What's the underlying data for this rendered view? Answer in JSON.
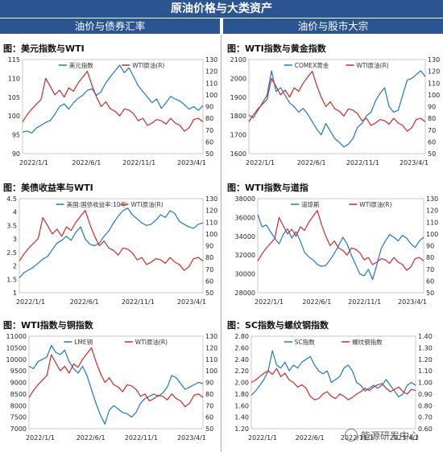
{
  "header": {
    "title": "原油价格与大类资产",
    "left_section": "油价与债券汇率",
    "right_section": "油价与股市大宗"
  },
  "watermark": "能源研发中心",
  "chart_data": [
    {
      "id": "p1",
      "type": "line",
      "title": "图：美元指数与WTI",
      "x_ticks": [
        "2022/1/1",
        "2022/6/1",
        "2022/11/1",
        "2023/4/1"
      ],
      "ylim": [
        90,
        115
      ],
      "yticks": [
        90,
        95,
        100,
        105,
        110,
        115
      ],
      "y2lim": [
        50,
        130
      ],
      "y2ticks": [
        50,
        60,
        70,
        80,
        90,
        100,
        110,
        120,
        130
      ],
      "series": [
        {
          "name": "美元指数",
          "axis": "left",
          "color": "#1f77c4",
          "values": [
            95.7,
            96.0,
            95.5,
            96.8,
            97.5,
            98.3,
            98.8,
            100.5,
            102.5,
            103.2,
            101.8,
            103.5,
            104.7,
            105.5,
            106.8,
            107.2,
            105.5,
            106.5,
            108.8,
            110.5,
            112.0,
            113.5,
            111.5,
            112.8,
            110.5,
            108.0,
            106.5,
            105.0,
            103.5,
            104.5,
            102.0,
            103.5,
            105.2,
            104.5,
            104.0,
            103.0,
            101.8,
            102.5,
            101.5,
            102.8
          ]
        },
        {
          "name": "WTI原油(R)",
          "axis": "right",
          "color": "#cc2a2a",
          "values": [
            77,
            83,
            88,
            92,
            96,
            114,
            107,
            100,
            104,
            98,
            106,
            103,
            110,
            115,
            120,
            108,
            98,
            90,
            94,
            88,
            86,
            82,
            88,
            87,
            84,
            78,
            80,
            74,
            76,
            79,
            78,
            75,
            80,
            76,
            74,
            69,
            72,
            79,
            80,
            77
          ]
        }
      ]
    },
    {
      "id": "p2",
      "type": "line",
      "title": "图：WTI指数与黄金指数",
      "x_ticks": [
        "2022/1/1",
        "2022/6/1",
        "2022/11/1",
        "2023/4/1"
      ],
      "ylim": [
        1600,
        2100
      ],
      "yticks": [
        1600,
        1700,
        1800,
        1900,
        2000,
        2100
      ],
      "y2lim": [
        50,
        130
      ],
      "y2ticks": [
        50,
        60,
        70,
        80,
        90,
        100,
        110,
        120,
        130
      ],
      "series": [
        {
          "name": "COMEX黄金",
          "axis": "left",
          "color": "#1f77c4",
          "values": [
            1805,
            1790,
            1830,
            1870,
            1910,
            2040,
            1930,
            1950,
            1910,
            1870,
            1850,
            1820,
            1840,
            1810,
            1770,
            1730,
            1700,
            1760,
            1720,
            1680,
            1660,
            1635,
            1650,
            1680,
            1740,
            1760,
            1800,
            1820,
            1880,
            1920,
            1950,
            1850,
            1820,
            1830,
            1910,
            1990,
            2000,
            2020,
            2040,
            2010
          ]
        },
        {
          "name": "WTI原油(R)",
          "axis": "right",
          "color": "#cc2a2a",
          "values": [
            77,
            83,
            88,
            92,
            96,
            114,
            107,
            100,
            104,
            98,
            106,
            103,
            110,
            115,
            120,
            108,
            98,
            90,
            94,
            88,
            86,
            82,
            88,
            87,
            84,
            78,
            80,
            74,
            76,
            79,
            78,
            75,
            80,
            76,
            74,
            69,
            72,
            79,
            80,
            77
          ]
        }
      ]
    },
    {
      "id": "p3",
      "type": "line",
      "title": "图：美债收益率与WTI",
      "x_ticks": [
        "2022/1/1",
        "2022/6/1",
        "2022/11/1",
        "2023/4/1"
      ],
      "ylim": [
        1,
        4.5
      ],
      "yticks": [
        1,
        1.5,
        2,
        2.5,
        3,
        3.5,
        4,
        4.5
      ],
      "y2lim": [
        50,
        130
      ],
      "y2ticks": [
        50,
        60,
        70,
        80,
        90,
        100,
        110,
        120,
        130
      ],
      "series": [
        {
          "name": "美国:国债收益率:10年",
          "axis": "left",
          "color": "#1f77c4",
          "values": [
            1.55,
            1.75,
            1.85,
            1.95,
            2.1,
            2.25,
            2.35,
            2.6,
            2.85,
            2.95,
            3.1,
            2.95,
            3.25,
            3.45,
            3.0,
            2.8,
            2.75,
            2.85,
            3.1,
            3.3,
            3.6,
            3.85,
            4.05,
            4.15,
            3.9,
            3.75,
            3.6,
            3.5,
            3.55,
            3.7,
            3.9,
            3.8,
            4.05,
            3.95,
            3.65,
            3.55,
            3.45,
            3.4,
            3.55,
            3.6
          ]
        },
        {
          "name": "WTI原油(R)",
          "axis": "right",
          "color": "#cc2a2a",
          "values": [
            77,
            83,
            88,
            92,
            96,
            114,
            107,
            100,
            104,
            98,
            106,
            103,
            110,
            115,
            120,
            108,
            98,
            90,
            94,
            88,
            86,
            82,
            88,
            87,
            84,
            78,
            80,
            74,
            76,
            79,
            78,
            75,
            80,
            76,
            74,
            69,
            72,
            79,
            80,
            77
          ]
        }
      ]
    },
    {
      "id": "p4",
      "type": "line",
      "title": "图：WTI指数与道指",
      "x_ticks": [
        "2022/1/1",
        "2022/6/1",
        "2022/11/1",
        "2023/4/1"
      ],
      "ylim": [
        28000,
        38000
      ],
      "yticks": [
        28000,
        30000,
        32000,
        34000,
        36000,
        38000
      ],
      "y2lim": [
        50,
        130
      ],
      "y2ticks": [
        50,
        60,
        70,
        80,
        90,
        100,
        110,
        120,
        130
      ],
      "series": [
        {
          "name": "道琼斯",
          "axis": "left",
          "color": "#1f77c4",
          "values": [
            36300,
            35000,
            35200,
            34500,
            33800,
            33200,
            34200,
            34800,
            33800,
            34500,
            33500,
            32300,
            31800,
            31500,
            31000,
            30800,
            30900,
            31500,
            32200,
            33000,
            33900,
            33200,
            32000,
            31000,
            30000,
            29800,
            30500,
            29400,
            31000,
            32700,
            33500,
            34200,
            33900,
            33500,
            34100,
            33800,
            33200,
            32800,
            33500,
            33900
          ]
        },
        {
          "name": "WTI原油(R)",
          "axis": "right",
          "color": "#cc2a2a",
          "values": [
            77,
            83,
            88,
            92,
            96,
            114,
            107,
            100,
            104,
            98,
            106,
            103,
            110,
            115,
            120,
            108,
            98,
            90,
            94,
            88,
            86,
            82,
            88,
            87,
            84,
            78,
            80,
            74,
            76,
            79,
            78,
            75,
            80,
            76,
            74,
            69,
            72,
            79,
            80,
            77
          ]
        }
      ]
    },
    {
      "id": "p5",
      "type": "line",
      "title": "图：WTI指数与铜指数",
      "x_ticks": [
        "2022/1/1",
        "2022/6/1",
        "2022/11/1",
        "2023/4/1"
      ],
      "ylim": [
        7000,
        11000
      ],
      "yticks": [
        7000,
        7500,
        8000,
        8500,
        9000,
        9500,
        10000,
        10500,
        11000
      ],
      "y2lim": [
        50,
        130
      ],
      "y2ticks": [
        50,
        60,
        70,
        80,
        90,
        100,
        110,
        120,
        130
      ],
      "series": [
        {
          "name": "LME铜",
          "axis": "left",
          "color": "#1f77c4",
          "values": [
            9700,
            9600,
            9900,
            10000,
            10100,
            10600,
            10300,
            10200,
            10400,
            9900,
            9600,
            9400,
            9700,
            9300,
            8700,
            8100,
            7600,
            7200,
            7800,
            8000,
            7850,
            7700,
            7650,
            7500,
            7700,
            8100,
            8300,
            8400,
            8500,
            8400,
            8550,
            8800,
            9300,
            9200,
            8950,
            8700,
            8800,
            8900,
            9000,
            8950
          ]
        },
        {
          "name": "WTI原油(R)",
          "axis": "right",
          "color": "#cc2a2a",
          "values": [
            77,
            83,
            88,
            92,
            96,
            114,
            107,
            100,
            104,
            98,
            106,
            103,
            110,
            115,
            120,
            108,
            98,
            90,
            94,
            88,
            86,
            82,
            88,
            87,
            84,
            78,
            80,
            74,
            76,
            79,
            78,
            75,
            80,
            76,
            74,
            69,
            72,
            79,
            80,
            77
          ]
        }
      ]
    },
    {
      "id": "p6",
      "type": "line",
      "title": "图：SC指数与螺纹钢指数",
      "x_ticks": [
        "2022/1/1",
        "2022/6/1",
        "2022/11/1",
        "2023/4/1"
      ],
      "ylim": [
        1.2,
        2.8
      ],
      "yticks": [
        1.2,
        1.4,
        1.6,
        1.8,
        2.0,
        2.2,
        2.4,
        2.6,
        2.8
      ],
      "yticks_labels": [
        "1.20",
        "1.40",
        "1.60",
        "1.80",
        "2.00",
        "2.20",
        "2.40",
        "2.60",
        "2.80"
      ],
      "y2lim": [
        0.6,
        1.4
      ],
      "y2ticks": [
        0.6,
        0.7,
        0.8,
        0.9,
        1.0,
        1.1,
        1.2,
        1.3,
        1.4
      ],
      "y2ticks_labels": [
        "0.60",
        "0.70",
        "0.80",
        "0.90",
        "1.00",
        "1.10",
        "1.20",
        "1.30",
        "1.40"
      ],
      "series": [
        {
          "name": "SC指数",
          "axis": "left",
          "color": "#1f77c4",
          "values": [
            1.78,
            1.85,
            1.95,
            2.05,
            2.2,
            2.55,
            2.3,
            2.25,
            2.35,
            2.2,
            2.3,
            2.25,
            2.35,
            2.4,
            2.45,
            2.3,
            2.2,
            2.15,
            2.2,
            2.0,
            2.05,
            2.1,
            2.25,
            2.3,
            2.2,
            2.0,
            1.95,
            1.85,
            1.9,
            1.95,
            1.9,
            1.95,
            2.05,
            1.95,
            1.85,
            1.75,
            1.8,
            1.95,
            2.0,
            1.95
          ]
        },
        {
          "name": "螺纹钢指数",
          "axis": "right",
          "color": "#cc2a2a",
          "values": [
            1.0,
            1.02,
            1.05,
            1.08,
            1.1,
            1.07,
            1.12,
            1.05,
            1.08,
            1.02,
            1.0,
            0.96,
            0.98,
            0.95,
            0.88,
            0.85,
            0.86,
            0.9,
            0.92,
            0.88,
            0.86,
            0.9,
            0.88,
            0.85,
            0.87,
            0.9,
            0.92,
            0.95,
            0.93,
            0.96,
            0.98,
            0.99,
            0.95,
            0.92,
            0.94,
            0.96,
            0.92,
            0.9,
            0.94,
            0.93
          ]
        }
      ]
    }
  ]
}
